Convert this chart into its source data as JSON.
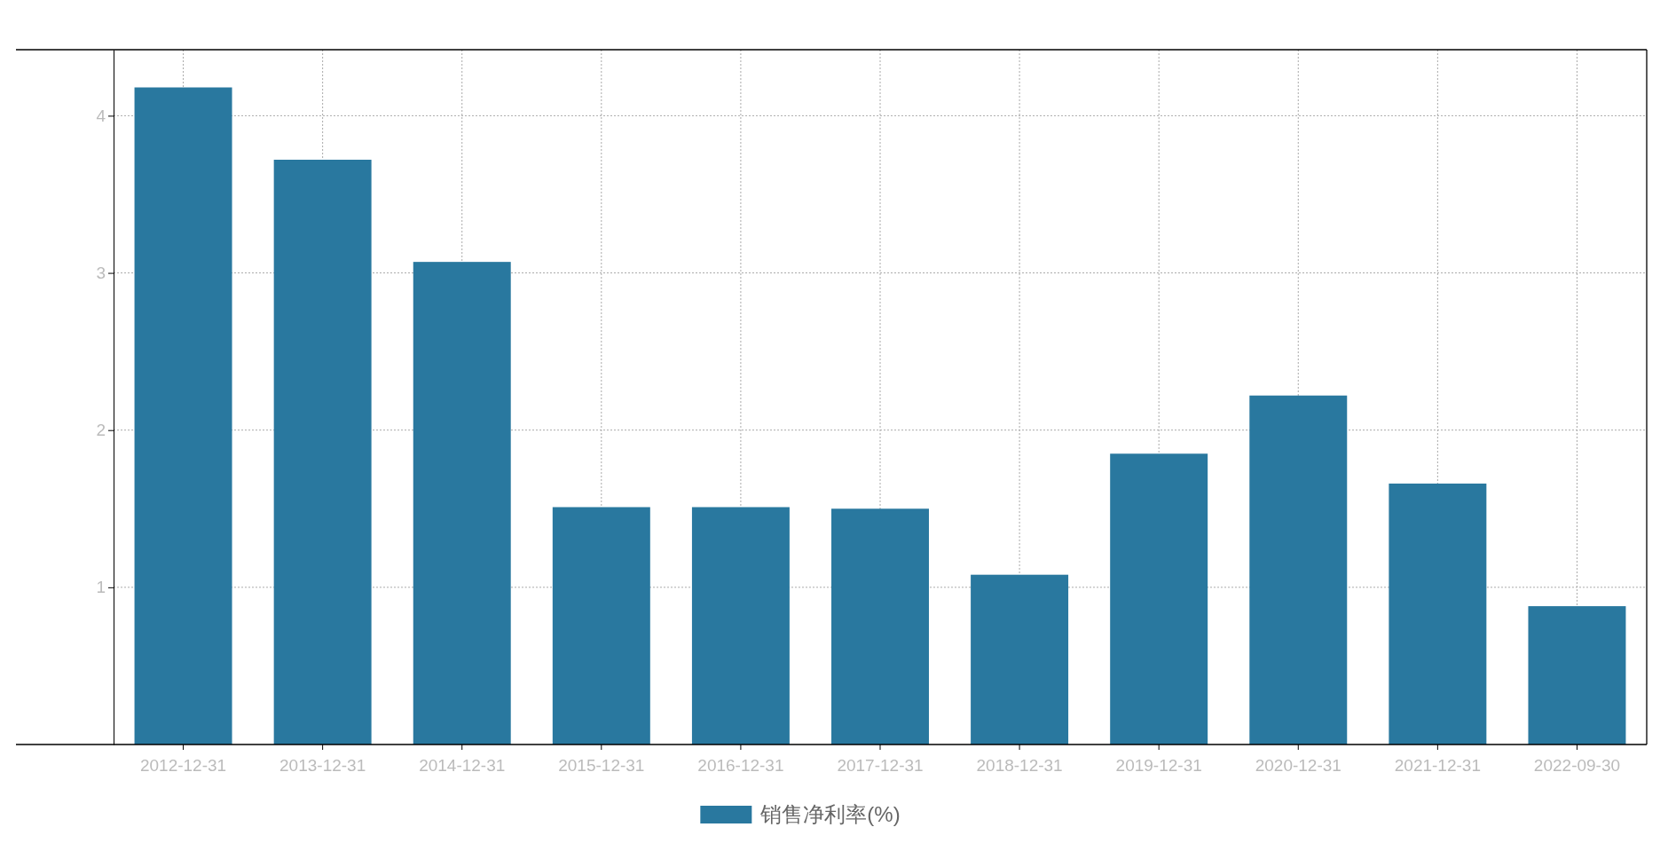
{
  "chart_data": {
    "type": "bar",
    "categories": [
      "2012-12-31",
      "2013-12-31",
      "2014-12-31",
      "2015-12-31",
      "2016-12-31",
      "2017-12-31",
      "2018-12-31",
      "2019-12-31",
      "2020-12-31",
      "2021-12-31",
      "2022-09-30"
    ],
    "series": [
      {
        "name": "销售净利率(%)",
        "color": "#29789f",
        "values": [
          4.18,
          3.72,
          3.07,
          1.51,
          1.51,
          1.5,
          1.08,
          1.85,
          2.22,
          1.66,
          0.88
        ]
      }
    ],
    "ylim": [
      0,
      4.42
    ],
    "yticks": [
      1,
      2,
      3,
      4
    ],
    "grid": true,
    "legend": "bottom"
  }
}
